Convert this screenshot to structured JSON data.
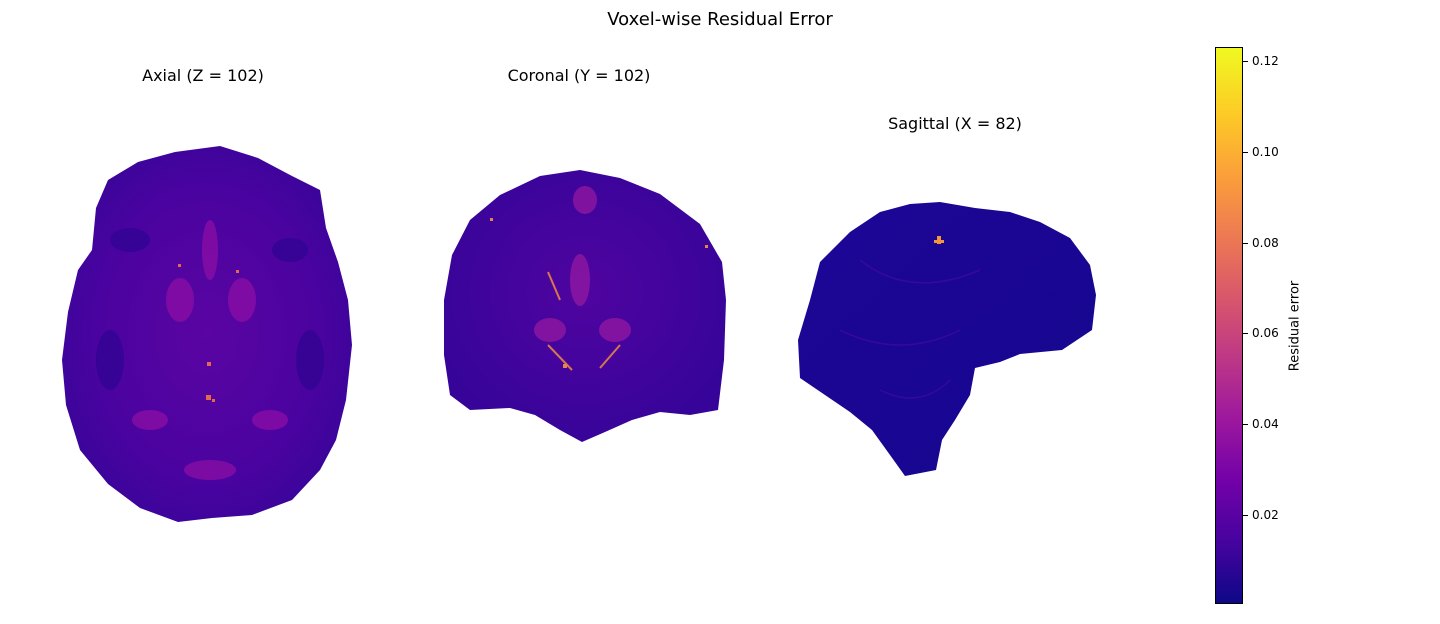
{
  "chart_data": {
    "type": "heatmap",
    "title": "Voxel-wise Residual Error",
    "panels": [
      {
        "id": "axial",
        "title": "Axial (Z = 102)"
      },
      {
        "id": "coronal",
        "title": "Coronal (Y = 102)"
      },
      {
        "id": "sagittal",
        "title": "Sagittal (X = 82)"
      }
    ],
    "colorbar": {
      "label": "Residual error",
      "colormap": "plasma",
      "range": [
        0,
        0.123
      ],
      "ticks": [
        "0.02",
        "0.04",
        "0.06",
        "0.08",
        "0.10",
        "0.12"
      ],
      "tick_values": [
        0.02,
        0.04,
        0.06,
        0.08,
        0.1,
        0.12
      ]
    },
    "colors": {
      "low": "#0d0887",
      "mid": "#7201a8",
      "high": "#f0f921"
    }
  }
}
